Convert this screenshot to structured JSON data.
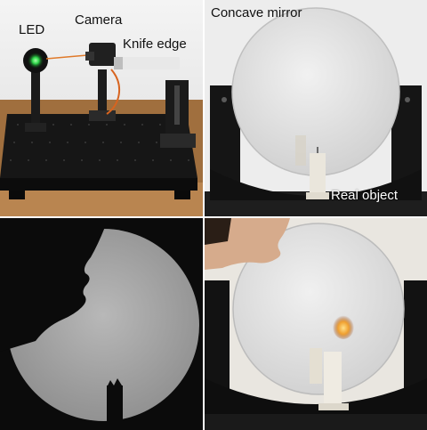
{
  "panels": {
    "setup": {
      "labels": {
        "led": "LED",
        "camera": "Camera",
        "knife_edge": "Knife edge"
      }
    },
    "mirror": {
      "labels": {
        "concave_mirror": "Concave mirror",
        "real_object": "Real object"
      }
    },
    "schlieren_image": {},
    "flame_mirror": {}
  },
  "colors": {
    "led_green": "#2fd64a",
    "laser_orange": "#e07a2a",
    "flame": "#f0a030",
    "background_dark": "#0b0b0b"
  }
}
